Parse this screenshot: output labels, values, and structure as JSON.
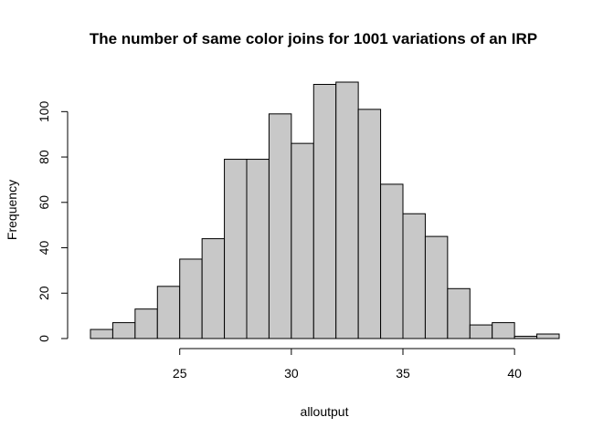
{
  "chart_data": {
    "type": "bar",
    "subtype": "histogram",
    "title": "The number of same color joins for 1001 variations of an IRP",
    "xlabel": "alloutput",
    "ylabel": "Frequency",
    "bin_edges": [
      21,
      22,
      23,
      24,
      25,
      26,
      27,
      28,
      29,
      30,
      31,
      32,
      33,
      34,
      35,
      36,
      37,
      38,
      39,
      40,
      41,
      42
    ],
    "values": [
      4,
      7,
      13,
      23,
      35,
      44,
      79,
      79,
      99,
      86,
      112,
      113,
      101,
      68,
      55,
      45,
      22,
      6,
      7,
      1,
      2
    ],
    "xlim": [
      21,
      42
    ],
    "ylim": [
      0,
      113
    ],
    "x_ticks": [
      25,
      30,
      35,
      40
    ],
    "x_tick_labels": [
      "25",
      "30",
      "35",
      "40"
    ],
    "y_ticks": [
      0,
      20,
      40,
      60,
      80,
      100
    ],
    "y_tick_labels": [
      "0",
      "20",
      "40",
      "60",
      "80",
      "100"
    ],
    "grid": false,
    "bar_color": "#c8c8c8",
    "edge_color": "#000000"
  }
}
